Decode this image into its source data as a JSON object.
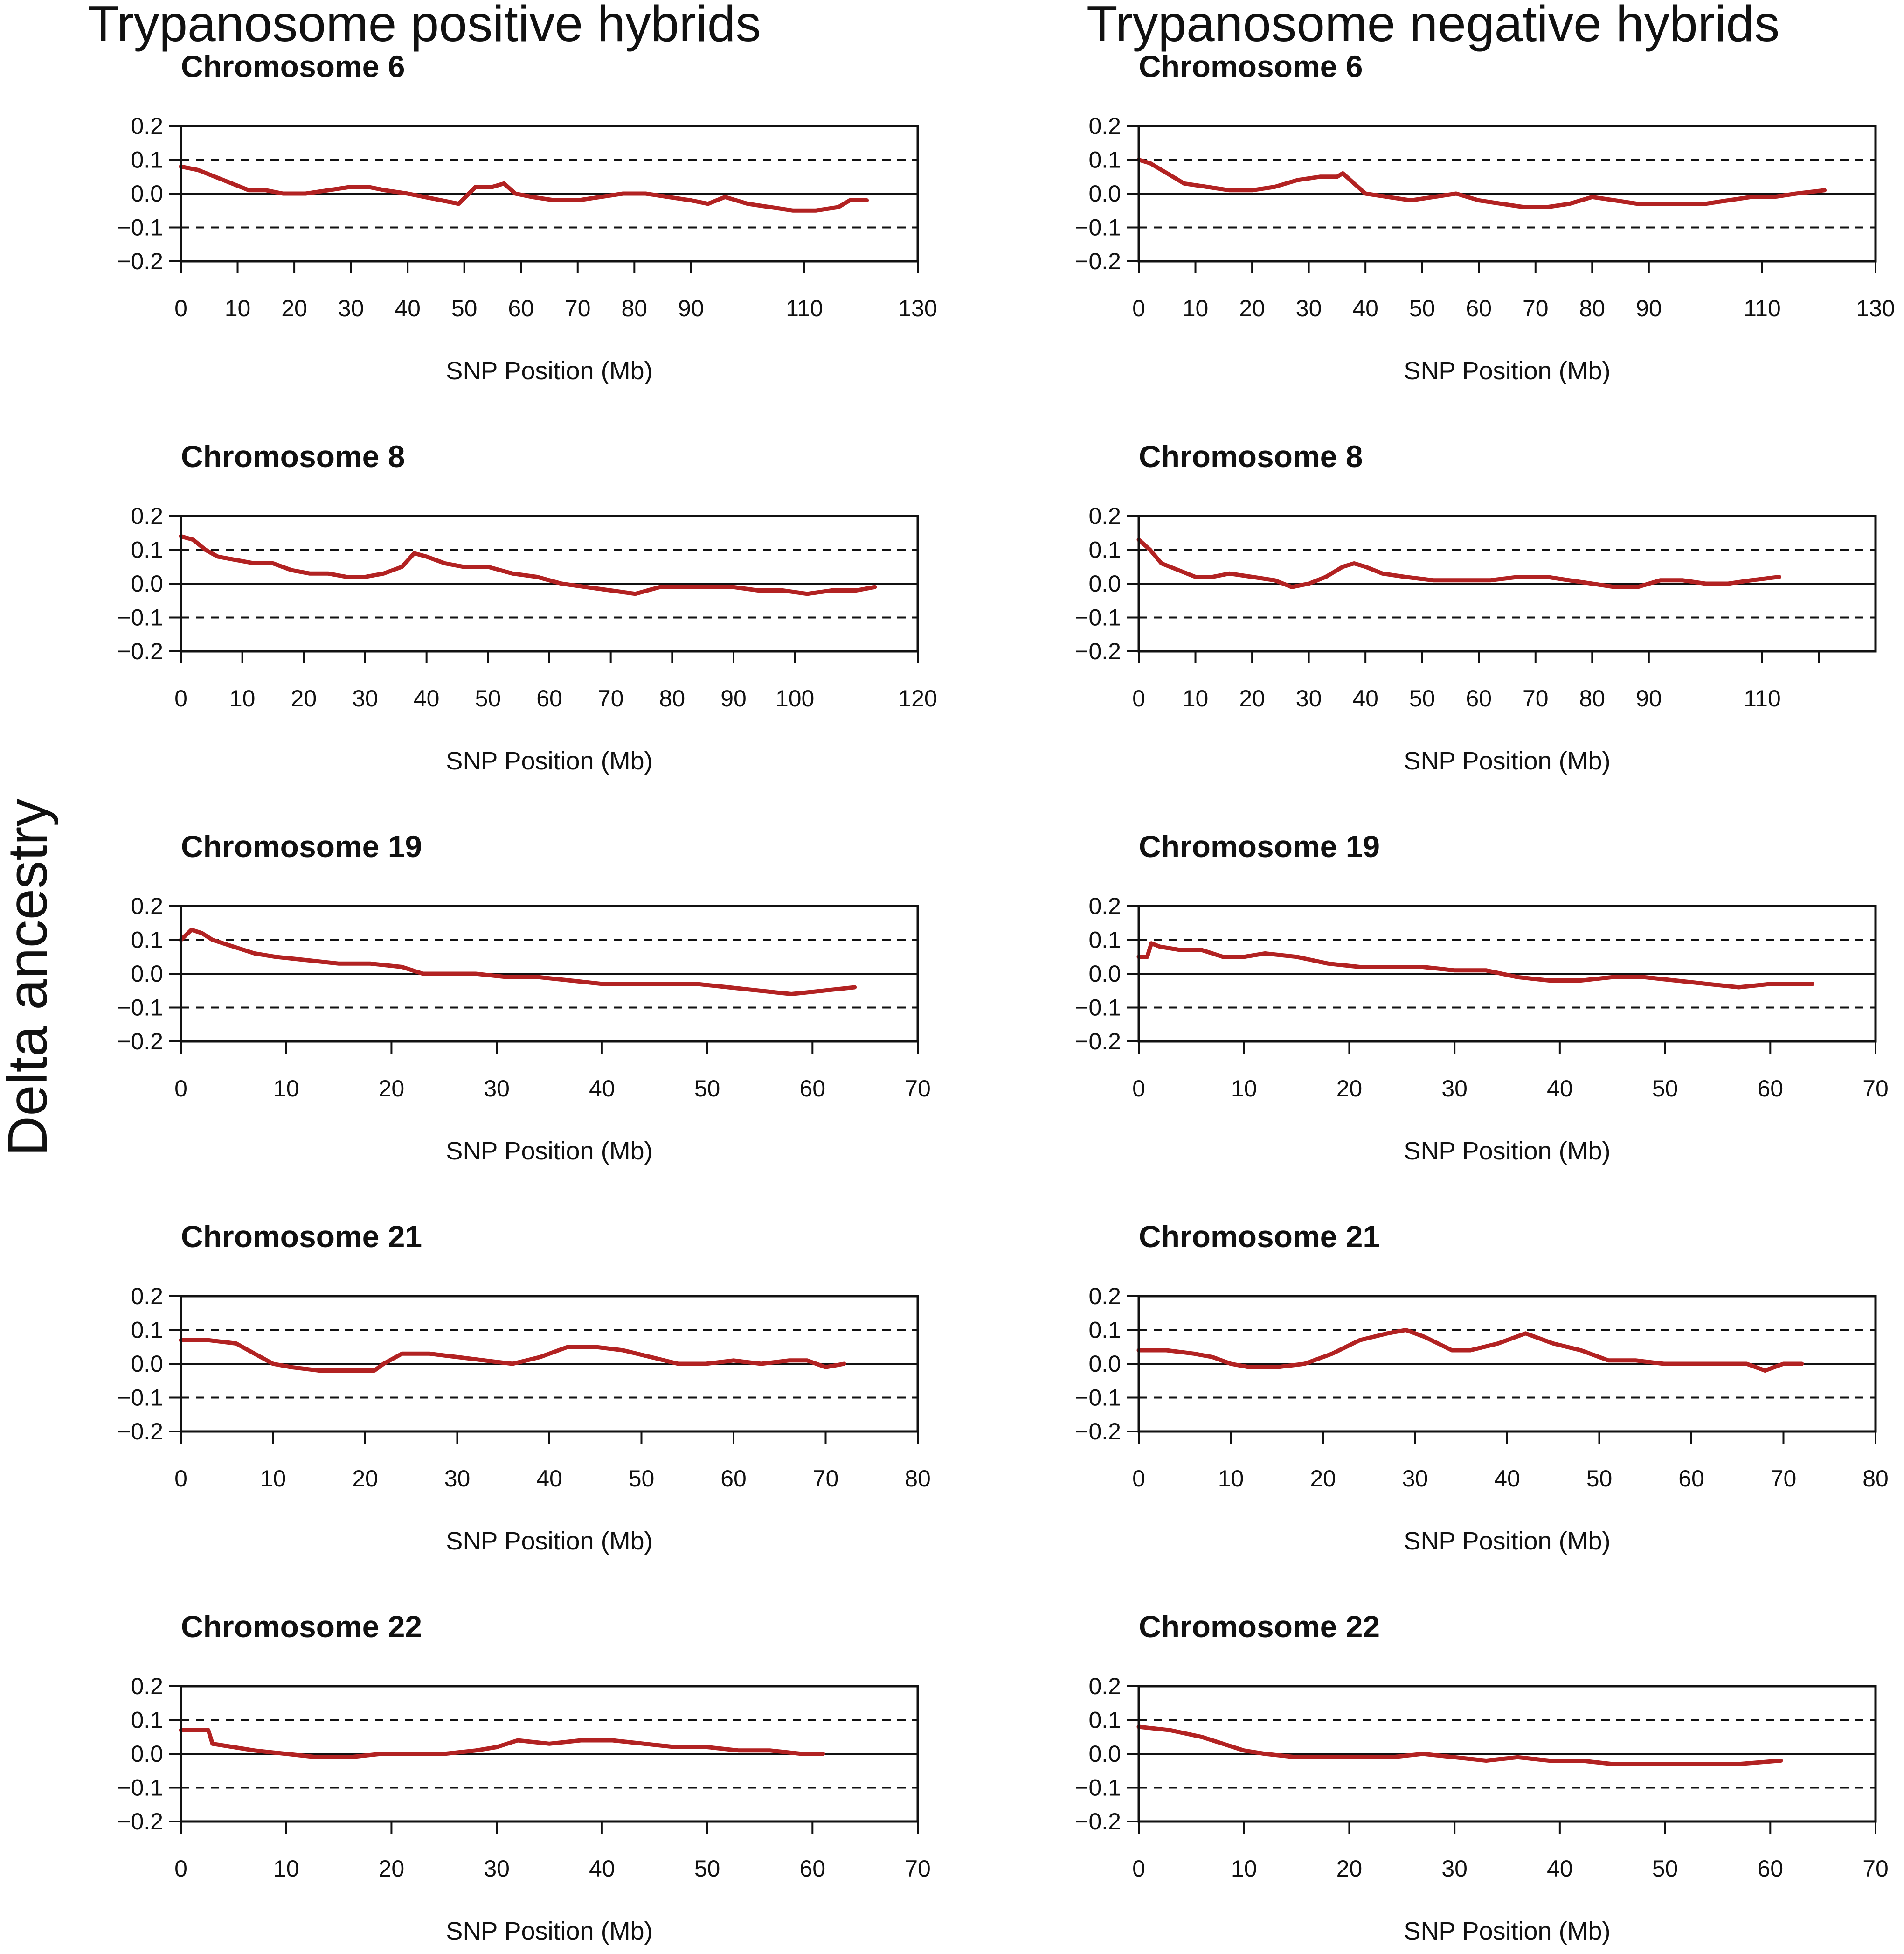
{
  "column_titles": [
    "Trypanosome positive hybrids",
    "Trypanosome negative hybrids"
  ],
  "y_axis_title": "Delta ancestry",
  "colors": {
    "series": "#b22222",
    "axis": "#111111"
  },
  "chart_data": [
    {
      "type": "line",
      "column": 0,
      "row": 0,
      "title": "Chromosome 6",
      "xlabel": "SNP Position (Mb)",
      "ylabel": "Delta ancestry",
      "xlim": [
        0,
        130
      ],
      "ylim": [
        -0.2,
        0.2
      ],
      "xticks": [
        0,
        10,
        20,
        30,
        40,
        50,
        60,
        70,
        80,
        90,
        110,
        130
      ],
      "yticks": [
        -0.2,
        -0.1,
        0.0,
        0.1,
        0.2
      ],
      "ytick_labels": [
        "−0.2",
        "−0.1",
        "0.0",
        "0.1",
        "0.2"
      ],
      "hlines_dashed": [
        0.1,
        -0.1
      ],
      "hline_solid": 0,
      "series": [
        {
          "name": "delta",
          "x": [
            0,
            3,
            6,
            9,
            12,
            15,
            18,
            22,
            26,
            30,
            33,
            36,
            40,
            43,
            46,
            49,
            52,
            55,
            57,
            59,
            62,
            66,
            70,
            74,
            78,
            82,
            86,
            90,
            93,
            96,
            100,
            104,
            108,
            112,
            116,
            118,
            121
          ],
          "y": [
            0.08,
            0.07,
            0.05,
            0.03,
            0.01,
            0.01,
            0.0,
            0.0,
            0.01,
            0.02,
            0.02,
            0.01,
            0.0,
            -0.01,
            -0.02,
            -0.03,
            0.02,
            0.02,
            0.03,
            0.0,
            -0.01,
            -0.02,
            -0.02,
            -0.01,
            0.0,
            0.0,
            -0.01,
            -0.02,
            -0.03,
            -0.01,
            -0.03,
            -0.04,
            -0.05,
            -0.05,
            -0.04,
            -0.02,
            -0.02
          ]
        }
      ]
    },
    {
      "type": "line",
      "column": 0,
      "row": 1,
      "title": "Chromosome 8",
      "xlabel": "SNP Position (Mb)",
      "ylabel": "Delta ancestry",
      "xlim": [
        0,
        120
      ],
      "ylim": [
        -0.2,
        0.2
      ],
      "xticks": [
        0,
        10,
        20,
        30,
        40,
        50,
        60,
        70,
        80,
        90,
        100,
        120
      ],
      "yticks": [
        -0.2,
        -0.1,
        0.0,
        0.1,
        0.2
      ],
      "ytick_labels": [
        "−0.2",
        "−0.1",
        "0.0",
        "0.1",
        "0.2"
      ],
      "hlines_dashed": [
        0.1,
        -0.1
      ],
      "hline_solid": 0,
      "series": [
        {
          "name": "delta",
          "x": [
            0,
            2,
            4,
            6,
            9,
            12,
            15,
            18,
            21,
            24,
            27,
            30,
            33,
            36,
            38,
            40,
            43,
            46,
            50,
            54,
            58,
            62,
            66,
            70,
            74,
            78,
            82,
            86,
            90,
            94,
            98,
            102,
            106,
            110,
            113
          ],
          "y": [
            0.14,
            0.13,
            0.1,
            0.08,
            0.07,
            0.06,
            0.06,
            0.04,
            0.03,
            0.03,
            0.02,
            0.02,
            0.03,
            0.05,
            0.09,
            0.08,
            0.06,
            0.05,
            0.05,
            0.03,
            0.02,
            0.0,
            -0.01,
            -0.02,
            -0.03,
            -0.01,
            -0.01,
            -0.01,
            -0.01,
            -0.02,
            -0.02,
            -0.03,
            -0.02,
            -0.02,
            -0.01
          ]
        }
      ]
    },
    {
      "type": "line",
      "column": 0,
      "row": 2,
      "title": "Chromosome 19",
      "xlabel": "SNP Position (Mb)",
      "ylabel": "Delta ancestry",
      "xlim": [
        0,
        70
      ],
      "ylim": [
        -0.2,
        0.2
      ],
      "xticks": [
        0,
        10,
        20,
        30,
        40,
        50,
        60,
        70
      ],
      "yticks": [
        -0.2,
        -0.1,
        0.0,
        0.1,
        0.2
      ],
      "ytick_labels": [
        "−0.2",
        "−0.1",
        "0.0",
        "0.1",
        "0.2"
      ],
      "hlines_dashed": [
        0.1,
        -0.1
      ],
      "hline_solid": 0,
      "series": [
        {
          "name": "delta",
          "x": [
            0,
            1,
            2,
            3,
            5,
            7,
            9,
            12,
            15,
            18,
            21,
            23,
            25,
            28,
            31,
            34,
            37,
            40,
            43,
            46,
            49,
            52,
            55,
            58,
            61,
            64
          ],
          "y": [
            0.1,
            0.13,
            0.12,
            0.1,
            0.08,
            0.06,
            0.05,
            0.04,
            0.03,
            0.03,
            0.02,
            0.0,
            0.0,
            0.0,
            -0.01,
            -0.01,
            -0.02,
            -0.03,
            -0.03,
            -0.03,
            -0.03,
            -0.04,
            -0.05,
            -0.06,
            -0.05,
            -0.04
          ]
        }
      ]
    },
    {
      "type": "line",
      "column": 0,
      "row": 3,
      "title": "Chromosome 21",
      "xlabel": "SNP Position (Mb)",
      "ylabel": "Delta ancestry",
      "xlim": [
        0,
        80
      ],
      "ylim": [
        -0.2,
        0.2
      ],
      "xticks": [
        0,
        10,
        20,
        30,
        40,
        50,
        60,
        70,
        80
      ],
      "yticks": [
        -0.2,
        -0.1,
        0.0,
        0.1,
        0.2
      ],
      "ytick_labels": [
        "−0.2",
        "−0.1",
        "0.0",
        "0.1",
        "0.2"
      ],
      "hlines_dashed": [
        0.1,
        -0.1
      ],
      "hline_solid": 0,
      "series": [
        {
          "name": "delta",
          "x": [
            0,
            3,
            6,
            8,
            10,
            12,
            15,
            18,
            21,
            22,
            24,
            27,
            30,
            33,
            36,
            39,
            42,
            45,
            48,
            51,
            54,
            57,
            60,
            63,
            66,
            68,
            70,
            72
          ],
          "y": [
            0.07,
            0.07,
            0.06,
            0.03,
            0.0,
            -0.01,
            -0.02,
            -0.02,
            -0.02,
            0.0,
            0.03,
            0.03,
            0.02,
            0.01,
            0.0,
            0.02,
            0.05,
            0.05,
            0.04,
            0.02,
            0.0,
            0.0,
            0.01,
            0.0,
            0.01,
            0.01,
            -0.01,
            0.0
          ]
        }
      ]
    },
    {
      "type": "line",
      "column": 0,
      "row": 4,
      "title": "Chromosome 22",
      "xlabel": "SNP Position (Mb)",
      "ylabel": "Delta ancestry",
      "xlim": [
        0,
        70
      ],
      "ylim": [
        -0.2,
        0.2
      ],
      "xticks": [
        0,
        10,
        20,
        30,
        40,
        50,
        60,
        70
      ],
      "yticks": [
        -0.2,
        -0.1,
        0.0,
        0.1,
        0.2
      ],
      "ytick_labels": [
        "−0.2",
        "−0.1",
        "0.0",
        "0.1",
        "0.2"
      ],
      "hlines_dashed": [
        0.1,
        -0.1
      ],
      "hline_solid": 0,
      "series": [
        {
          "name": "delta",
          "x": [
            0,
            2,
            2.6,
            3,
            5,
            7,
            10,
            13,
            16,
            19,
            22,
            25,
            28,
            30,
            32,
            35,
            38,
            41,
            44,
            47,
            50,
            53,
            56,
            59,
            61
          ],
          "y": [
            0.07,
            0.07,
            0.07,
            0.03,
            0.02,
            0.01,
            0.0,
            -0.01,
            -0.01,
            0.0,
            0.0,
            0.0,
            0.01,
            0.02,
            0.04,
            0.03,
            0.04,
            0.04,
            0.03,
            0.02,
            0.02,
            0.01,
            0.01,
            0.0,
            0.0
          ]
        }
      ]
    },
    {
      "type": "line",
      "column": 1,
      "row": 0,
      "title": "Chromosome 6",
      "xlabel": "SNP Position (Mb)",
      "ylabel": "Delta ancestry",
      "xlim": [
        0,
        130
      ],
      "ylim": [
        -0.2,
        0.2
      ],
      "xticks": [
        0,
        10,
        20,
        30,
        40,
        50,
        60,
        70,
        80,
        90,
        110,
        130
      ],
      "yticks": [
        -0.2,
        -0.1,
        0.0,
        0.1,
        0.2
      ],
      "ytick_labels": [
        "−0.2",
        "−0.1",
        "0.0",
        "0.1",
        "0.2"
      ],
      "hlines_dashed": [
        0.1,
        -0.1
      ],
      "hline_solid": 0,
      "series": [
        {
          "name": "delta",
          "x": [
            0,
            2,
            5,
            8,
            12,
            16,
            20,
            24,
            28,
            32,
            35,
            36,
            38,
            40,
            44,
            48,
            52,
            56,
            60,
            64,
            68,
            72,
            76,
            80,
            84,
            88,
            92,
            96,
            100,
            104,
            108,
            112,
            116,
            121
          ],
          "y": [
            0.1,
            0.09,
            0.06,
            0.03,
            0.02,
            0.01,
            0.01,
            0.02,
            0.04,
            0.05,
            0.05,
            0.06,
            0.03,
            0.0,
            -0.01,
            -0.02,
            -0.01,
            0.0,
            -0.02,
            -0.03,
            -0.04,
            -0.04,
            -0.03,
            -0.01,
            -0.02,
            -0.03,
            -0.03,
            -0.03,
            -0.03,
            -0.02,
            -0.01,
            -0.01,
            0.0,
            0.01
          ]
        }
      ]
    },
    {
      "type": "line",
      "column": 1,
      "row": 1,
      "title": "Chromosome 8",
      "xlabel": "SNP Position (Mb)",
      "ylabel": "Delta ancestry",
      "xlim": [
        0,
        130
      ],
      "ylim": [
        -0.2,
        0.2
      ],
      "xticks": [
        0,
        10,
        20,
        30,
        40,
        50,
        60,
        70,
        80,
        90,
        110,
        120
      ],
      "xtick_labels": [
        "0",
        "10",
        "20",
        "30",
        "40",
        "50",
        "60",
        "70",
        "80",
        "90",
        "110",
        ""
      ],
      "yticks": [
        -0.2,
        -0.1,
        0.0,
        0.1,
        0.2
      ],
      "ytick_labels": [
        "−0.2",
        "−0.1",
        "0.0",
        "0.1",
        "0.2"
      ],
      "hlines_dashed": [
        0.1,
        -0.1
      ],
      "hline_solid": 0,
      "series": [
        {
          "name": "delta",
          "x": [
            0,
            2,
            4,
            7,
            10,
            13,
            16,
            20,
            24,
            27,
            30,
            33,
            36,
            38,
            40,
            43,
            47,
            52,
            57,
            62,
            67,
            72,
            76,
            80,
            84,
            88,
            92,
            96,
            100,
            104,
            108,
            113
          ],
          "y": [
            0.13,
            0.1,
            0.06,
            0.04,
            0.02,
            0.02,
            0.03,
            0.02,
            0.01,
            -0.01,
            0.0,
            0.02,
            0.05,
            0.06,
            0.05,
            0.03,
            0.02,
            0.01,
            0.01,
            0.01,
            0.02,
            0.02,
            0.01,
            0.0,
            -0.01,
            -0.01,
            0.01,
            0.01,
            0.0,
            0.0,
            0.01,
            0.02
          ]
        }
      ]
    },
    {
      "type": "line",
      "column": 1,
      "row": 2,
      "title": "Chromosome 19",
      "xlabel": "SNP Position (Mb)",
      "ylabel": "Delta ancestry",
      "xlim": [
        0,
        70
      ],
      "ylim": [
        -0.2,
        0.2
      ],
      "xticks": [
        0,
        10,
        20,
        30,
        40,
        50,
        60,
        70
      ],
      "yticks": [
        -0.2,
        -0.1,
        0.0,
        0.1,
        0.2
      ],
      "ytick_labels": [
        "−0.2",
        "−0.1",
        "0.0",
        "0.1",
        "0.2"
      ],
      "hlines_dashed": [
        0.1,
        -0.1
      ],
      "hline_solid": 0,
      "series": [
        {
          "name": "delta",
          "x": [
            0,
            0.8,
            1.2,
            2,
            4,
            6,
            8,
            10,
            12,
            15,
            18,
            21,
            24,
            27,
            30,
            33,
            36,
            39,
            42,
            45,
            48,
            51,
            54,
            57,
            60,
            64
          ],
          "y": [
            0.05,
            0.05,
            0.09,
            0.08,
            0.07,
            0.07,
            0.05,
            0.05,
            0.06,
            0.05,
            0.03,
            0.02,
            0.02,
            0.02,
            0.01,
            0.01,
            -0.01,
            -0.02,
            -0.02,
            -0.01,
            -0.01,
            -0.02,
            -0.03,
            -0.04,
            -0.03,
            -0.03
          ]
        }
      ]
    },
    {
      "type": "line",
      "column": 1,
      "row": 3,
      "title": "Chromosome 21",
      "xlabel": "SNP Position (Mb)",
      "ylabel": "Delta ancestry",
      "xlim": [
        0,
        80
      ],
      "ylim": [
        -0.2,
        0.2
      ],
      "xticks": [
        0,
        10,
        20,
        30,
        40,
        50,
        60,
        70,
        80
      ],
      "yticks": [
        -0.2,
        -0.1,
        0.0,
        0.1,
        0.2
      ],
      "ytick_labels": [
        "−0.2",
        "−0.1",
        "0.0",
        "0.1",
        "0.2"
      ],
      "hlines_dashed": [
        0.1,
        -0.1
      ],
      "hline_solid": 0,
      "series": [
        {
          "name": "delta",
          "x": [
            0,
            3,
            6,
            8,
            10,
            12,
            15,
            18,
            21,
            24,
            27,
            29,
            31,
            34,
            36,
            39,
            42,
            45,
            48,
            51,
            54,
            57,
            60,
            63,
            66,
            68,
            70,
            72
          ],
          "y": [
            0.04,
            0.04,
            0.03,
            0.02,
            0.0,
            -0.01,
            -0.01,
            0.0,
            0.03,
            0.07,
            0.09,
            0.1,
            0.08,
            0.04,
            0.04,
            0.06,
            0.09,
            0.06,
            0.04,
            0.01,
            0.01,
            0.0,
            0.0,
            0.0,
            0.0,
            -0.02,
            0.0,
            0.0
          ]
        }
      ]
    },
    {
      "type": "line",
      "column": 1,
      "row": 4,
      "title": "Chromosome 22",
      "xlabel": "SNP Position (Mb)",
      "ylabel": "Delta ancestry",
      "xlim": [
        0,
        70
      ],
      "ylim": [
        -0.2,
        0.2
      ],
      "xticks": [
        0,
        10,
        20,
        30,
        40,
        50,
        60,
        70
      ],
      "yticks": [
        -0.2,
        -0.1,
        0.0,
        0.1,
        0.2
      ],
      "ytick_labels": [
        "−0.2",
        "−0.1",
        "0.0",
        "0.1",
        "0.2"
      ],
      "hlines_dashed": [
        0.1,
        -0.1
      ],
      "hline_solid": 0,
      "series": [
        {
          "name": "delta",
          "x": [
            0,
            3,
            6,
            8,
            10,
            12,
            15,
            18,
            21,
            24,
            27,
            30,
            33,
            36,
            39,
            42,
            45,
            48,
            51,
            54,
            57,
            61
          ],
          "y": [
            0.08,
            0.07,
            0.05,
            0.03,
            0.01,
            0.0,
            -0.01,
            -0.01,
            -0.01,
            -0.01,
            0.0,
            -0.01,
            -0.02,
            -0.01,
            -0.02,
            -0.02,
            -0.03,
            -0.03,
            -0.03,
            -0.03,
            -0.03,
            -0.02
          ]
        }
      ]
    }
  ]
}
